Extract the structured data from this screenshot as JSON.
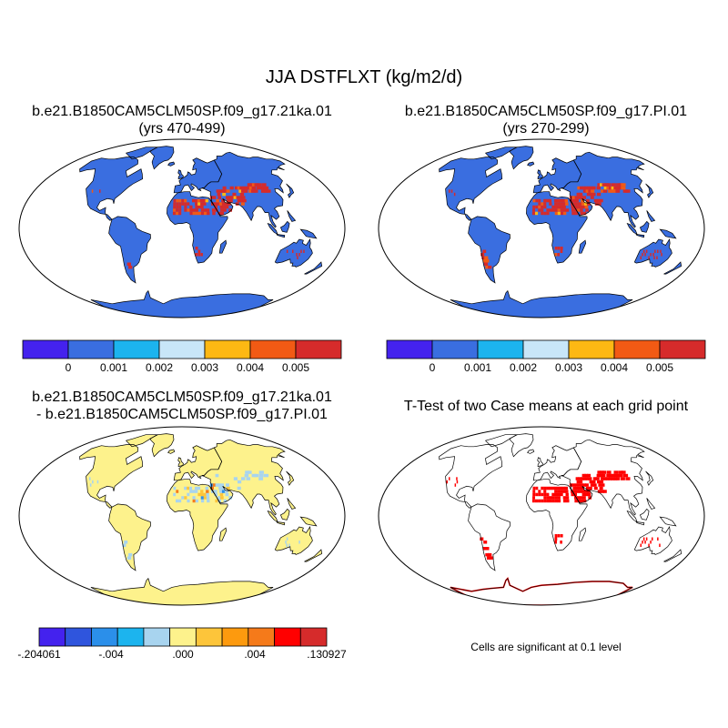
{
  "main_title": "JJA DSTFLXT (kg/m2/d)",
  "panels": [
    {
      "title_line1": "b.e21.B1850CAM5CLM50SP.f09_g17.21ka.01",
      "title_line2": "(yrs 470-499)"
    },
    {
      "title_line1": "b.e21.B1850CAM5CLM50SP.f09_g17.PI.01",
      "title_line2": "(yrs 270-299)"
    },
    {
      "title_line1": "b.e21.B1850CAM5CLM50SP.f09_g17.21ka.01",
      "title_line2": "- b.e21.B1850CAM5CLM50SP.f09_g17.PI.01"
    },
    {
      "title_line1": "T-Test of two Case means at each grid point"
    }
  ],
  "colorbar_abs": {
    "colors": [
      "#4422ee",
      "#3a6ee0",
      "#1cb4ee",
      "#c8e6f8",
      "#fdb813",
      "#f25a14",
      "#d62b2b"
    ],
    "labels": [
      "0",
      "0.001",
      "0.002",
      "0.003",
      "0.004",
      "0.005"
    ]
  },
  "colorbar_diff": {
    "colors": [
      "#4422ee",
      "#2f55dd",
      "#2b8fea",
      "#1cb4ee",
      "#a8d4ef",
      "#fdf28c",
      "#fdc53a",
      "#fd9a0e",
      "#f57a1a",
      "#ff0000",
      "#d62b2b"
    ],
    "labels": [
      "-.204061",
      "-.004",
      ".000",
      ".004",
      ".130927"
    ]
  },
  "significance_note": "Cells are significant at 0.1 level",
  "map_colors": {
    "abs_ocean": "#ffffff",
    "abs_land": "#3a6ee0",
    "dust_high": "#d62b2b",
    "dust_mid": "#f25a14",
    "dust_low": "#fdb813",
    "diff_land": "#fdf28c",
    "diff_light_blue": "#a8d4ef",
    "sig_red": "#ff0000",
    "coast": "#000000"
  }
}
